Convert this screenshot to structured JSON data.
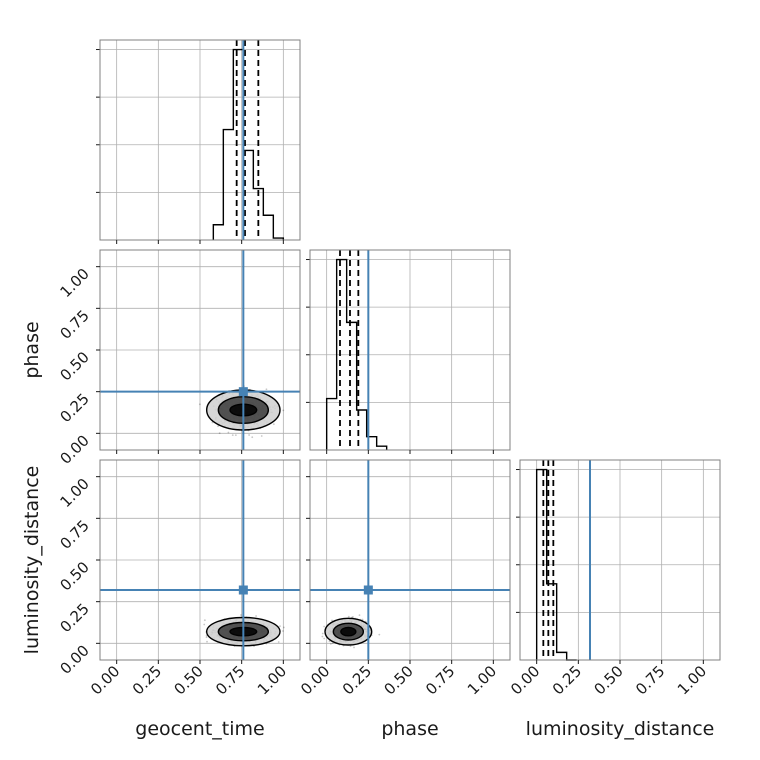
{
  "chart_data": {
    "type": "corner",
    "parameters": [
      "geocent_time",
      "phase",
      "luminosity_distance"
    ],
    "axis_labels": {
      "x": [
        "geocent_time",
        "phase",
        "luminosity_distance"
      ],
      "y": [
        "",
        "phase",
        "luminosity_distance"
      ]
    },
    "ticks": [
      "0.00",
      "0.25",
      "0.50",
      "0.75",
      "1.00"
    ],
    "range": [
      -0.1,
      1.1
    ],
    "grid": true,
    "colors": {
      "truth": "#4682b4",
      "hist": "#000000",
      "quantile": "#000000",
      "points": "#000000",
      "grid": "#b0b0b0"
    },
    "truths": [
      0.76,
      0.25,
      0.32
    ],
    "quantiles": [
      [
        0.72,
        0.77,
        0.85
      ],
      [
        0.08,
        0.14,
        0.19
      ],
      [
        0.04,
        0.07,
        0.1
      ]
    ],
    "histograms": [
      {
        "bin_width": 0.06,
        "bin_starts": [
          0.58,
          0.64,
          0.7,
          0.76,
          0.82,
          0.88,
          0.94
        ],
        "values": [
          0.08,
          0.58,
          1.0,
          0.47,
          0.27,
          0.13,
          0.01
        ]
      },
      {
        "bin_width": 0.06,
        "bin_starts": [
          0.0,
          0.06,
          0.12,
          0.18,
          0.24,
          0.3
        ],
        "values": [
          0.27,
          1.0,
          0.67,
          0.21,
          0.07,
          0.02
        ]
      },
      {
        "bin_width": 0.06,
        "bin_starts": [
          0.0,
          0.06,
          0.12,
          0.18
        ],
        "values": [
          1.0,
          0.4,
          0.04,
          0.0
        ]
      }
    ],
    "panels_2d": [
      {
        "row": 1,
        "col": 0,
        "x_param": "geocent_time",
        "y_param": "phase",
        "center": [
          0.76,
          0.14
        ],
        "spread": [
          0.1,
          0.065
        ],
        "contour_levels": [
          {
            "width": [
              0.08,
              0.035
            ],
            "fill": "#000000"
          },
          {
            "width": [
              0.15,
              0.08
            ],
            "fill": "#3a3a3a"
          },
          {
            "width": [
              0.22,
              0.12
            ],
            "fill": "#cfcfcf"
          }
        ]
      },
      {
        "row": 2,
        "col": 0,
        "x_param": "geocent_time",
        "y_param": "luminosity_distance",
        "center": [
          0.76,
          0.07
        ],
        "spread": [
          0.11,
          0.04
        ],
        "contour_levels": [
          {
            "width": [
              0.08,
              0.025
            ],
            "fill": "#000000"
          },
          {
            "width": [
              0.15,
              0.055
            ],
            "fill": "#3a3a3a"
          },
          {
            "width": [
              0.22,
              0.085
            ],
            "fill": "#cfcfcf"
          }
        ]
      },
      {
        "row": 2,
        "col": 1,
        "x_param": "phase",
        "y_param": "luminosity_distance",
        "center": [
          0.13,
          0.07
        ],
        "spread": [
          0.07,
          0.04
        ],
        "contour_levels": [
          {
            "width": [
              0.045,
              0.025
            ],
            "fill": "#000000"
          },
          {
            "width": [
              0.09,
              0.05
            ],
            "fill": "#3a3a3a"
          },
          {
            "width": [
              0.14,
              0.08
            ],
            "fill": "#cfcfcf"
          }
        ]
      }
    ]
  }
}
